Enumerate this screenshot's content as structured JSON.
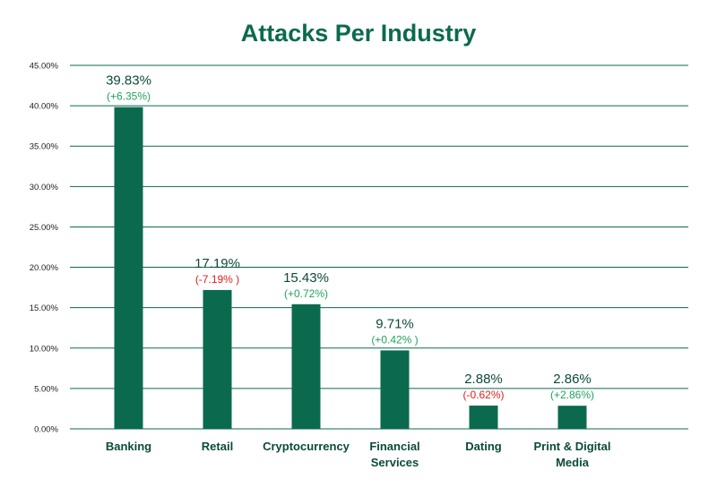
{
  "chart_data": {
    "type": "bar",
    "title": "Attacks Per Industry",
    "xlabel": "",
    "ylabel": "",
    "ylim": [
      0,
      45
    ],
    "y_ticks": [
      "0.00%",
      "5.00%",
      "10.00%",
      "15.00%",
      "20.00%",
      "25.00%",
      "30.00%",
      "35.00%",
      "40.00%",
      "45.00%"
    ],
    "grid": true,
    "legend": "none",
    "bar_color": "#0b6a4e",
    "categories": [
      [
        "Banking"
      ],
      [
        "Retail"
      ],
      [
        "Cryptocurrency"
      ],
      [
        "Financial",
        "Services"
      ],
      [
        "Dating"
      ],
      [
        "Print & Digital",
        "Media"
      ]
    ],
    "values": [
      39.83,
      17.19,
      15.43,
      9.71,
      2.88,
      2.86
    ],
    "value_labels": [
      "39.83%",
      "17.19%",
      "15.43%",
      "9.71%",
      "2.88%",
      "2.86%"
    ],
    "change_labels": [
      "(+6.35%)",
      "(-7.19% )",
      "(+0.72%)",
      "(+0.42% )",
      "(-0.62%)",
      "(+2.86%)"
    ],
    "change_colors": [
      "#22a35a",
      "#e0201c",
      "#22a35a",
      "#22a35a",
      "#e0201c",
      "#22a35a"
    ],
    "colors": {
      "bar": "#0b6a4e",
      "grid": "#0b6a4e",
      "title": "#0b6a4e",
      "positive": "#22a35a",
      "negative": "#e0201c"
    }
  }
}
